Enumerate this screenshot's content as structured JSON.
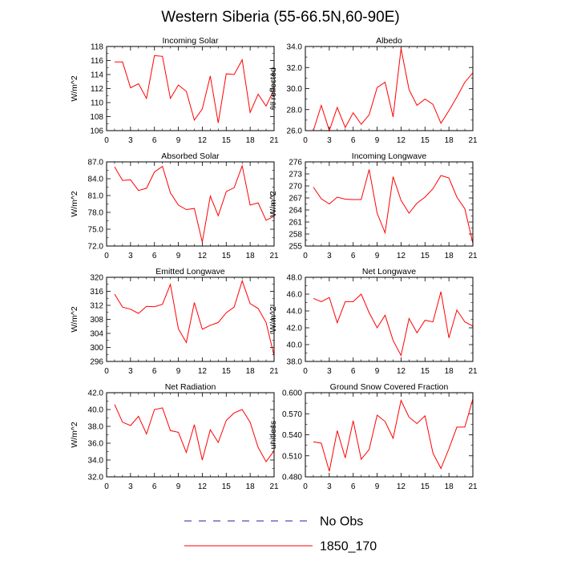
{
  "title": "Western Siberia (55-66.5N,60-90E)",
  "legend": {
    "entries": [
      {
        "label": "No Obs",
        "color": "#2222aa",
        "style": "dashed"
      },
      {
        "label": "1850_170",
        "color": "#ff0000",
        "style": "solid"
      }
    ]
  },
  "chart_data": [
    {
      "type": "line",
      "title": "Incoming Solar",
      "ylabel": "W/m^2",
      "xlim": [
        0,
        21
      ],
      "xticks": [
        0,
        3,
        6,
        9,
        12,
        15,
        18,
        21
      ],
      "ylim": [
        106,
        118
      ],
      "yticks": [
        106,
        108,
        110,
        112,
        114,
        116,
        118
      ],
      "ytick_labels": [
        "106",
        "108",
        "110",
        "112",
        "114",
        "116",
        "118"
      ],
      "series": [
        {
          "color": "#ff0000",
          "x": [
            1,
            2,
            3,
            4,
            5,
            6,
            7,
            8,
            9,
            10,
            11,
            12,
            13,
            14,
            15,
            16,
            17,
            18,
            19,
            20,
            21
          ],
          "y": [
            115.8,
            115.8,
            112.1,
            112.7,
            110.6,
            116.7,
            116.6,
            110.6,
            112.5,
            111.6,
            107.5,
            109.1,
            113.8,
            107.1,
            114.1,
            114.0,
            116.1,
            108.6,
            111.2,
            109.5,
            111.9
          ]
        }
      ]
    },
    {
      "type": "line",
      "title": "Albedo",
      "ylabel": "% reflected",
      "xlim": [
        0,
        21
      ],
      "xticks": [
        0,
        3,
        6,
        9,
        12,
        15,
        18,
        21
      ],
      "ylim": [
        26,
        34
      ],
      "yticks": [
        26,
        28,
        30,
        32,
        34
      ],
      "ytick_labels": [
        "26.0",
        "28.0",
        "30.0",
        "32.0",
        "34.0"
      ],
      "series": [
        {
          "color": "#ff0000",
          "x": [
            1,
            2,
            3,
            4,
            5,
            6,
            7,
            8,
            9,
            10,
            11,
            12,
            13,
            14,
            15,
            16,
            17,
            18,
            19,
            20,
            21
          ],
          "y": [
            26.0,
            28.4,
            26.0,
            28.2,
            26.3,
            27.7,
            26.6,
            27.5,
            30.1,
            30.6,
            27.3,
            33.8,
            29.9,
            28.4,
            29.0,
            28.5,
            26.7,
            27.9,
            29.2,
            30.6,
            31.5
          ]
        }
      ]
    },
    {
      "type": "line",
      "title": "Absorbed Solar",
      "ylabel": "W/m^2",
      "xlim": [
        0,
        21
      ],
      "xticks": [
        0,
        3,
        6,
        9,
        12,
        15,
        18,
        21
      ],
      "ylim": [
        72,
        87
      ],
      "yticks": [
        72,
        75,
        78,
        81,
        84,
        87
      ],
      "ytick_labels": [
        "72.0",
        "75.0",
        "78.0",
        "81.0",
        "84.0",
        "87.0"
      ],
      "series": [
        {
          "color": "#ff0000",
          "x": [
            1,
            2,
            3,
            4,
            5,
            6,
            7,
            8,
            9,
            10,
            11,
            12,
            13,
            14,
            15,
            16,
            17,
            18,
            19,
            20,
            21
          ],
          "y": [
            86.1,
            83.7,
            83.8,
            81.9,
            82.3,
            85.2,
            86.2,
            81.5,
            79.3,
            78.5,
            78.7,
            72.7,
            80.9,
            77.4,
            81.7,
            82.4,
            86.3,
            79.3,
            79.7,
            76.6,
            77.3
          ]
        }
      ]
    },
    {
      "type": "line",
      "title": "Incoming Longwave",
      "ylabel": "W/m^2",
      "xlim": [
        0,
        21
      ],
      "xticks": [
        0,
        3,
        6,
        9,
        12,
        15,
        18,
        21
      ],
      "ylim": [
        255,
        276
      ],
      "yticks": [
        255,
        258,
        261,
        264,
        267,
        270,
        273,
        276
      ],
      "ytick_labels": [
        "255",
        "258",
        "261",
        "264",
        "267",
        "270",
        "273",
        "276"
      ],
      "series": [
        {
          "color": "#ff0000",
          "x": [
            1,
            2,
            3,
            4,
            5,
            6,
            7,
            8,
            9,
            10,
            11,
            12,
            13,
            14,
            15,
            16,
            17,
            18,
            19,
            20,
            21
          ],
          "y": [
            269.7,
            266.8,
            265.5,
            267.2,
            266.7,
            266.6,
            266.6,
            274.1,
            263.2,
            258.3,
            272.3,
            266.4,
            263.2,
            265.7,
            267.2,
            269.3,
            272.6,
            272.0,
            267.2,
            264.3,
            255.7
          ]
        }
      ]
    },
    {
      "type": "line",
      "title": "Emitted Longwave",
      "ylabel": "W/m^2",
      "xlim": [
        0,
        21
      ],
      "xticks": [
        0,
        3,
        6,
        9,
        12,
        15,
        18,
        21
      ],
      "ylim": [
        296,
        320
      ],
      "yticks": [
        296,
        300,
        304,
        308,
        312,
        316,
        320
      ],
      "ytick_labels": [
        "296",
        "300",
        "304",
        "308",
        "312",
        "316",
        "320"
      ],
      "series": [
        {
          "color": "#ff0000",
          "x": [
            1,
            2,
            3,
            4,
            5,
            6,
            7,
            8,
            9,
            10,
            11,
            12,
            13,
            14,
            15,
            16,
            17,
            18,
            19,
            20,
            21
          ],
          "y": [
            315.2,
            311.5,
            310.9,
            309.7,
            311.7,
            311.6,
            312.3,
            318.0,
            305.3,
            301.4,
            312.8,
            305.2,
            306.3,
            307.1,
            309.9,
            311.5,
            319.0,
            312.5,
            311.1,
            307.1,
            297.6
          ]
        }
      ]
    },
    {
      "type": "line",
      "title": "Net Longwave",
      "ylabel": "W/m^2",
      "xlim": [
        0,
        21
      ],
      "xticks": [
        0,
        3,
        6,
        9,
        12,
        15,
        18,
        21
      ],
      "ylim": [
        38,
        48
      ],
      "yticks": [
        38,
        40,
        42,
        44,
        46,
        48
      ],
      "ytick_labels": [
        "38.0",
        "40.0",
        "42.0",
        "44.0",
        "46.0",
        "48.0"
      ],
      "series": [
        {
          "color": "#ff0000",
          "x": [
            1,
            2,
            3,
            4,
            5,
            6,
            7,
            8,
            9,
            10,
            11,
            12,
            13,
            14,
            15,
            16,
            17,
            18,
            19,
            20,
            21
          ],
          "y": [
            45.5,
            45.1,
            45.6,
            42.6,
            45.1,
            45.1,
            46.0,
            43.8,
            42.0,
            43.5,
            40.5,
            38.7,
            43.1,
            41.4,
            42.9,
            42.7,
            46.3,
            40.8,
            44.1,
            42.7,
            42.2
          ]
        }
      ]
    },
    {
      "type": "line",
      "title": "Net Radiation",
      "ylabel": "W/m^2",
      "xlim": [
        0,
        21
      ],
      "xticks": [
        0,
        3,
        6,
        9,
        12,
        15,
        18,
        21
      ],
      "ylim": [
        32,
        42
      ],
      "yticks": [
        32,
        34,
        36,
        38,
        40,
        42
      ],
      "ytick_labels": [
        "32.0",
        "34.0",
        "36.0",
        "38.0",
        "40.0",
        "42.0"
      ],
      "series": [
        {
          "color": "#ff0000",
          "x": [
            1,
            2,
            3,
            4,
            5,
            6,
            7,
            8,
            9,
            10,
            11,
            12,
            13,
            14,
            15,
            16,
            17,
            18,
            19,
            20,
            21
          ],
          "y": [
            40.6,
            38.5,
            38.1,
            39.2,
            37.1,
            40.0,
            40.2,
            37.5,
            37.3,
            34.9,
            38.2,
            34.0,
            37.6,
            36.1,
            38.7,
            39.6,
            40.0,
            38.5,
            35.5,
            33.8,
            35.1
          ]
        }
      ]
    },
    {
      "type": "line",
      "title": "Ground Snow Covered Fraction",
      "ylabel": "unitless",
      "xlim": [
        0,
        21
      ],
      "xticks": [
        0,
        3,
        6,
        9,
        12,
        15,
        18,
        21
      ],
      "ylim": [
        0.48,
        0.6
      ],
      "yticks": [
        0.48,
        0.51,
        0.54,
        0.57,
        0.6
      ],
      "ytick_labels": [
        "0.480",
        "0.510",
        "0.540",
        "0.570",
        "0.600"
      ],
      "series": [
        {
          "color": "#ff0000",
          "x": [
            1,
            2,
            3,
            4,
            5,
            6,
            7,
            8,
            9,
            10,
            11,
            12,
            13,
            14,
            15,
            16,
            17,
            18,
            19,
            20,
            21
          ],
          "y": [
            0.53,
            0.528,
            0.488,
            0.546,
            0.507,
            0.56,
            0.505,
            0.519,
            0.568,
            0.559,
            0.535,
            0.589,
            0.565,
            0.556,
            0.567,
            0.514,
            0.492,
            0.52,
            0.551,
            0.551,
            0.591
          ]
        }
      ]
    }
  ]
}
